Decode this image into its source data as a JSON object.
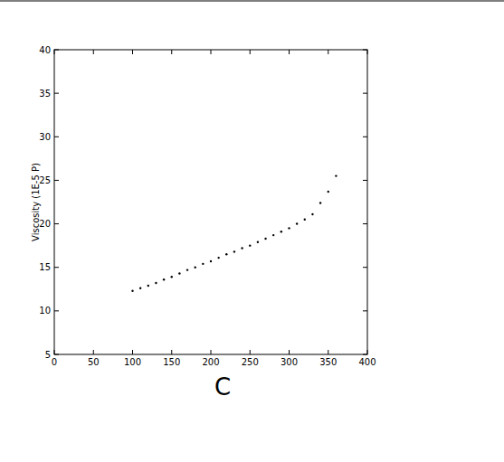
{
  "chart_data": {
    "type": "scatter",
    "x_label": "C",
    "y_label": "Viscosity (1E-5 P)",
    "x": [
      100,
      110,
      120,
      130,
      140,
      150,
      160,
      170,
      180,
      190,
      200,
      210,
      220,
      230,
      240,
      250,
      260,
      270,
      280,
      290,
      300,
      310,
      320,
      330,
      340,
      350,
      360
    ],
    "values": [
      12.3,
      12.6,
      12.9,
      13.2,
      13.6,
      13.9,
      14.3,
      14.7,
      15.0,
      15.4,
      15.7,
      16.1,
      16.5,
      16.8,
      17.2,
      17.5,
      17.9,
      18.3,
      18.7,
      19.1,
      19.5,
      20.0,
      20.5,
      21.1,
      22.4,
      23.7,
      25.5
    ],
    "color": "#000000",
    "marker": "dot",
    "xlim": [
      0,
      400
    ],
    "ylim": [
      5,
      40
    ],
    "xticks": [
      0,
      50,
      100,
      150,
      200,
      250,
      300,
      350,
      400
    ],
    "yticks": [
      5,
      10,
      15,
      20,
      25,
      30,
      35,
      40
    ],
    "grid": false
  }
}
